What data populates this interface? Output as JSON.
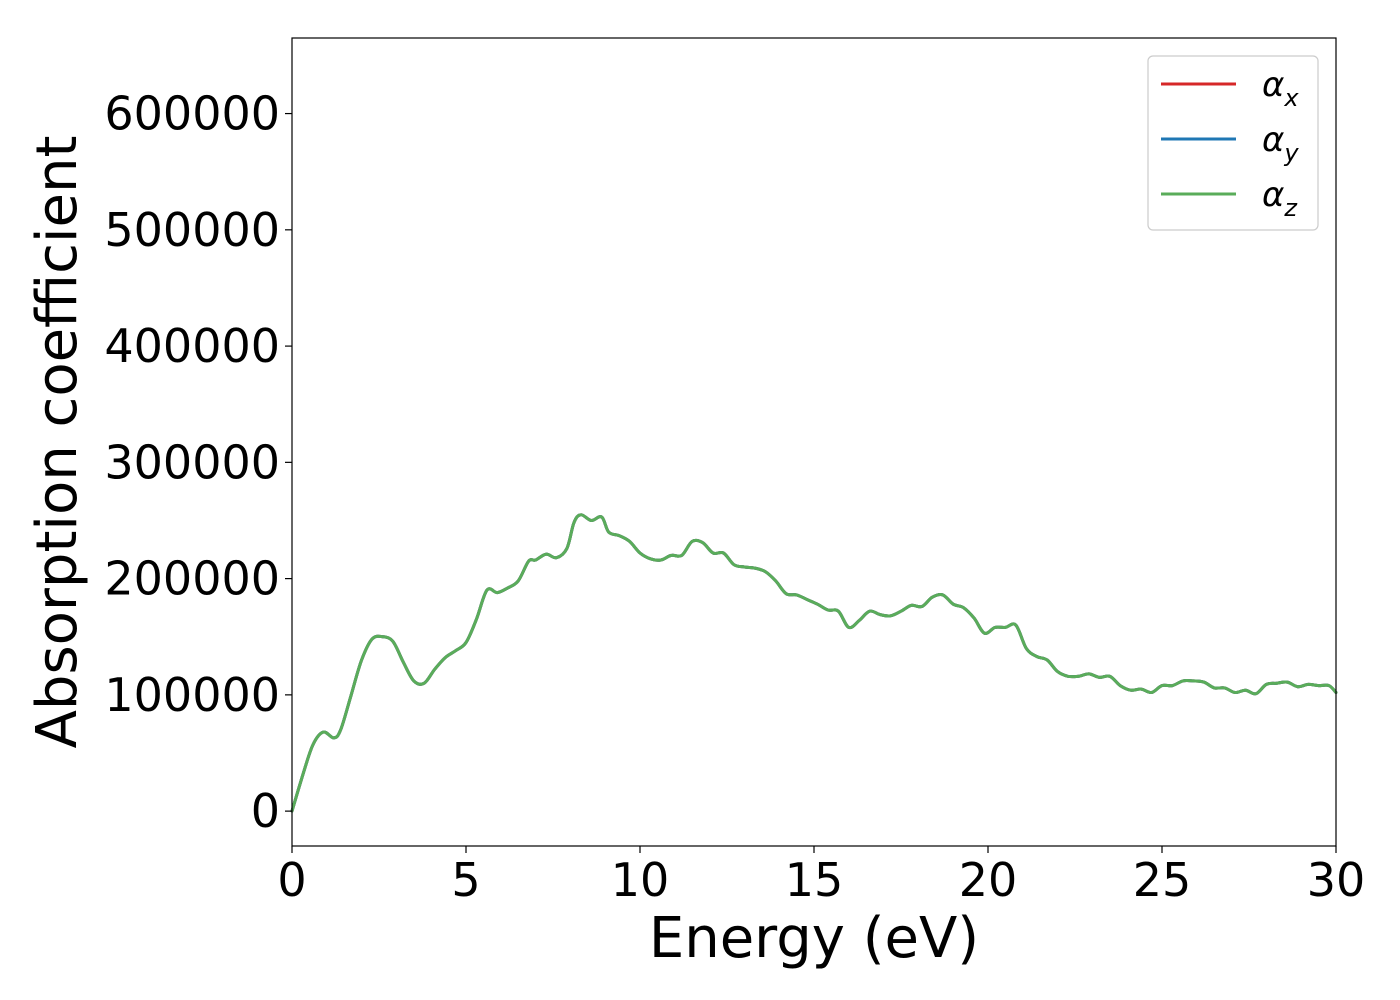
{
  "chart_data": {
    "type": "line",
    "title": "",
    "xlabel": "Energy (eV)",
    "ylabel": "Absorption coefficient",
    "xlim": [
      0,
      30
    ],
    "ylim": [
      -30000,
      665000
    ],
    "xticks": [
      0,
      5,
      10,
      15,
      20,
      25,
      30
    ],
    "xtick_labels": [
      "0",
      "5",
      "10",
      "15",
      "20",
      "25",
      "30"
    ],
    "yticks": [
      0,
      100000,
      200000,
      300000,
      400000,
      500000,
      600000
    ],
    "ytick_labels": [
      "0",
      "100000",
      "200000",
      "300000",
      "400000",
      "500000",
      "600000"
    ],
    "grid": false,
    "legend_position": "top-right",
    "x": [
      0,
      0.3,
      0.6,
      0.9,
      1.2,
      1.4,
      1.7,
      2.0,
      2.3,
      2.6,
      2.9,
      3.2,
      3.5,
      3.8,
      4.1,
      4.4,
      4.7,
      5.0,
      5.3,
      5.6,
      5.9,
      6.2,
      6.5,
      6.8,
      7.0,
      7.3,
      7.6,
      7.9,
      8.1,
      8.3,
      8.6,
      8.9,
      9.1,
      9.4,
      9.7,
      10.0,
      10.3,
      10.6,
      10.9,
      11.2,
      11.5,
      11.8,
      12.1,
      12.4,
      12.7,
      13.0,
      13.3,
      13.6,
      13.9,
      14.2,
      14.5,
      14.8,
      15.1,
      15.4,
      15.7,
      16.0,
      16.3,
      16.6,
      16.9,
      17.2,
      17.5,
      17.8,
      18.1,
      18.4,
      18.7,
      19.0,
      19.3,
      19.6,
      19.9,
      20.2,
      20.5,
      20.8,
      21.1,
      21.4,
      21.7,
      22.0,
      22.3,
      22.6,
      22.9,
      23.2,
      23.5,
      23.8,
      24.1,
      24.4,
      24.7,
      25.0,
      25.3,
      25.6,
      25.9,
      26.2,
      26.5,
      26.8,
      27.1,
      27.4,
      27.7,
      28.0,
      28.3,
      28.6,
      28.9,
      29.2,
      29.5,
      29.8,
      30.0
    ],
    "series": [
      {
        "name": "αx",
        "color": "#d62728",
        "values": [
          0,
          30000,
          57000,
          68000,
          63000,
          70000,
          100000,
          130000,
          148000,
          150000,
          146000,
          128000,
          112000,
          110000,
          122000,
          132000,
          138000,
          145000,
          165000,
          190000,
          188000,
          192000,
          198000,
          215000,
          216000,
          221000,
          218000,
          226000,
          248000,
          255000,
          250000,
          253000,
          240000,
          237000,
          232000,
          222000,
          217000,
          216000,
          220000,
          220000,
          232000,
          231000,
          222000,
          222000,
          212000,
          210000,
          209000,
          206000,
          198000,
          187000,
          186000,
          182000,
          178000,
          173000,
          172000,
          158000,
          164000,
          172000,
          169000,
          168000,
          172000,
          177000,
          176000,
          184000,
          186000,
          178000,
          175000,
          166000,
          153000,
          158000,
          158000,
          160000,
          140000,
          133000,
          130000,
          120000,
          116000,
          116000,
          118000,
          115000,
          116000,
          108000,
          104000,
          105000,
          102000,
          108000,
          108000,
          112000,
          112000,
          111000,
          106000,
          106000,
          102000,
          104000,
          101000,
          109000,
          110000,
          111000,
          107000,
          109000,
          108000,
          108000,
          102000
        ]
      },
      {
        "name": "αy",
        "color": "#1f77b4",
        "values": [
          0,
          30000,
          57000,
          68000,
          63000,
          70000,
          100000,
          130000,
          148000,
          150000,
          146000,
          128000,
          112000,
          110000,
          122000,
          132000,
          138000,
          145000,
          165000,
          190000,
          188000,
          192000,
          198000,
          215000,
          216000,
          221000,
          218000,
          226000,
          248000,
          255000,
          250000,
          253000,
          240000,
          237000,
          232000,
          222000,
          217000,
          216000,
          220000,
          220000,
          232000,
          231000,
          222000,
          222000,
          212000,
          210000,
          209000,
          206000,
          198000,
          187000,
          186000,
          182000,
          178000,
          173000,
          172000,
          158000,
          164000,
          172000,
          169000,
          168000,
          172000,
          177000,
          176000,
          184000,
          186000,
          178000,
          175000,
          166000,
          153000,
          158000,
          158000,
          160000,
          140000,
          133000,
          130000,
          120000,
          116000,
          116000,
          118000,
          115000,
          116000,
          108000,
          104000,
          105000,
          102000,
          108000,
          108000,
          112000,
          112000,
          111000,
          106000,
          106000,
          102000,
          104000,
          101000,
          109000,
          110000,
          111000,
          107000,
          109000,
          108000,
          108000,
          102000
        ]
      },
      {
        "name": "αz",
        "color": "#5aac5a",
        "values": [
          0,
          30000,
          57000,
          68000,
          63000,
          70000,
          100000,
          130000,
          148000,
          150000,
          146000,
          128000,
          112000,
          110000,
          122000,
          132000,
          138000,
          145000,
          165000,
          190000,
          188000,
          192000,
          198000,
          215000,
          216000,
          221000,
          218000,
          226000,
          248000,
          255000,
          250000,
          253000,
          240000,
          237000,
          232000,
          222000,
          217000,
          216000,
          220000,
          220000,
          232000,
          231000,
          222000,
          222000,
          212000,
          210000,
          209000,
          206000,
          198000,
          187000,
          186000,
          182000,
          178000,
          173000,
          172000,
          158000,
          164000,
          172000,
          169000,
          168000,
          172000,
          177000,
          176000,
          184000,
          186000,
          178000,
          175000,
          166000,
          153000,
          158000,
          158000,
          160000,
          140000,
          133000,
          130000,
          120000,
          116000,
          116000,
          118000,
          115000,
          116000,
          108000,
          104000,
          105000,
          102000,
          108000,
          108000,
          112000,
          112000,
          111000,
          106000,
          106000,
          102000,
          104000,
          101000,
          109000,
          110000,
          111000,
          107000,
          109000,
          108000,
          108000,
          102000
        ]
      }
    ],
    "legend": [
      {
        "symbol": "α",
        "sub": "x",
        "color": "#d62728"
      },
      {
        "symbol": "α",
        "sub": "y",
        "color": "#1f77b4"
      },
      {
        "symbol": "α",
        "sub": "z",
        "color": "#5aac5a"
      }
    ]
  }
}
